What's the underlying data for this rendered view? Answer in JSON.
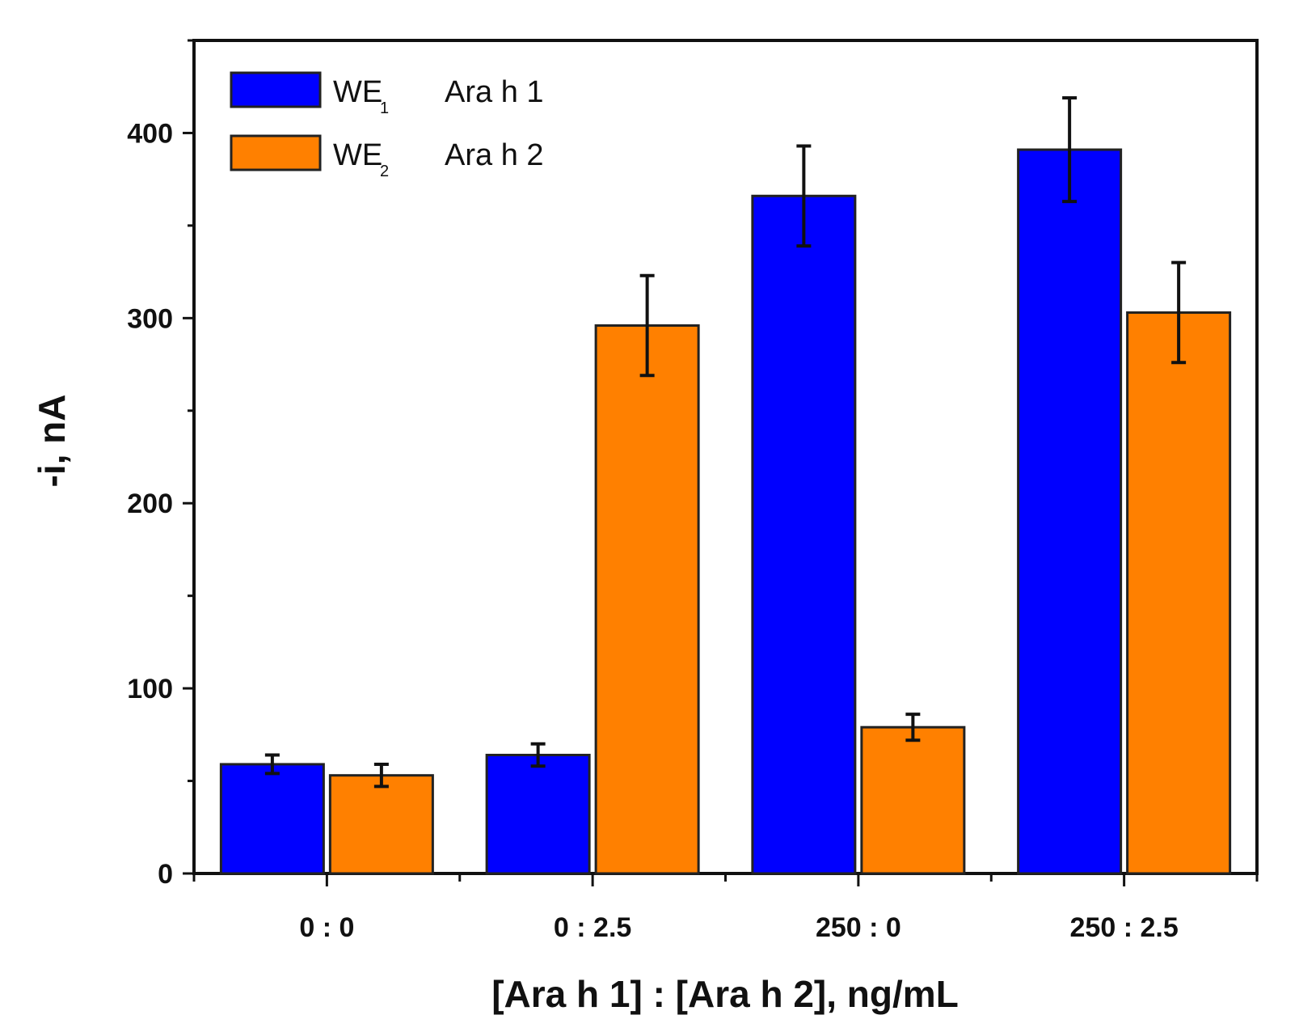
{
  "chart_data": {
    "type": "bar",
    "title": "",
    "xlabel": "[Ara h 1] : [Ara h 2], ng/mL",
    "ylabel": "-i, nA",
    "ylim": [
      0,
      450
    ],
    "yticks": [
      0,
      100,
      200,
      300,
      400
    ],
    "categories": [
      "0 : 0",
      "0 : 2.5",
      "250 : 0",
      "250 : 2.5"
    ],
    "series": [
      {
        "name": "WE1 Ara h 1",
        "legend_main": "WE",
        "legend_sub": "1",
        "legend_label": "Ara h 1",
        "color": "#0000ff",
        "values": [
          59,
          64,
          366,
          391
        ],
        "errors": [
          5,
          6,
          27,
          28
        ]
      },
      {
        "name": "WE2 Ara h 2",
        "legend_main": "WE",
        "legend_sub": "2",
        "legend_label": "Ara h 2",
        "color": "#ff8000",
        "values": [
          53,
          296,
          79,
          303
        ],
        "errors": [
          6,
          27,
          7,
          27
        ]
      }
    ],
    "legend_position": "top-left",
    "grid": false
  }
}
